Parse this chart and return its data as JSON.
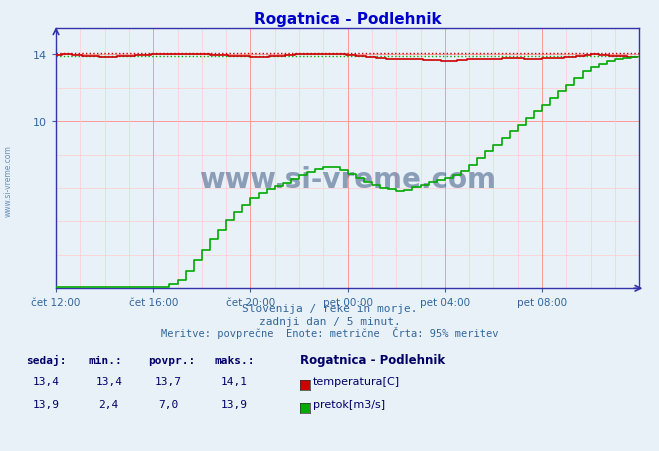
{
  "title": "Rogatnica - Podlehnik",
  "title_color": "#0000cc",
  "bg_color": "#e8f0f8",
  "plot_bg_color": "#e8f0f8",
  "grid_color_major": "#ff9999",
  "grid_color_minor": "#ffcccc",
  "axis_color": "#3333aa",
  "xlabel_texts": [
    "čet 12:00",
    "čet 16:00",
    "čet 20:00",
    "pet 00:00",
    "pet 04:00",
    "pet 08:00"
  ],
  "xlabel_color": "#336699",
  "ylim": [
    0,
    15.56
  ],
  "xlim": [
    0,
    288
  ],
  "temp_color": "#cc0000",
  "flow_color": "#00aa00",
  "temp_max": 14.1,
  "flow_max": 13.9,
  "subtitle1": "Slovenija / reke in morje.",
  "subtitle2": "zadnji dan / 5 minut.",
  "subtitle3": "Meritve: povprečne  Enote: metrične  Črta: 95% meritev",
  "subtitle_color": "#336699",
  "watermark": "www.si-vreme.com",
  "watermark_color": "#1a3a6b",
  "legend_title": "Rogatnica - Podlehnik",
  "legend_color": "#000066",
  "table_header": [
    "sedaj:",
    "min.:",
    "povpr.:",
    "maks.:"
  ],
  "table_color": "#000066",
  "temp_row": [
    "13,4",
    "13,4",
    "13,7",
    "14,1"
  ],
  "flow_row": [
    "13,9",
    "2,4",
    "7,0",
    "13,9"
  ],
  "temp_label": "temperatura[C]",
  "flow_label": "pretok[m3/s]"
}
